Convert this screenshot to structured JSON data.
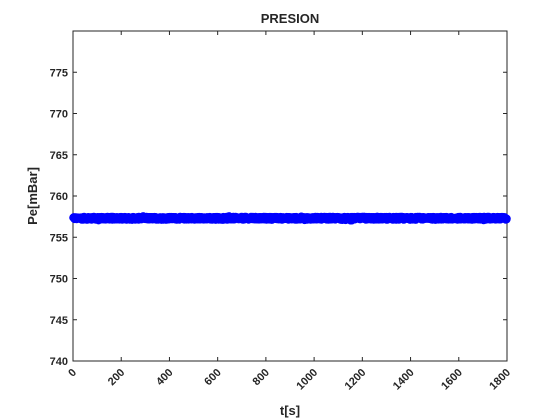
{
  "chart_data": {
    "type": "scatter",
    "title": "PRESION",
    "xlabel": "t[s]",
    "ylabel": "Pe[mBar]",
    "xlim": [
      0,
      1800
    ],
    "ylim": [
      740,
      780
    ],
    "xticks": [
      0,
      200,
      400,
      600,
      800,
      1000,
      1200,
      1400,
      1600,
      1800
    ],
    "yticks": [
      740,
      745,
      750,
      755,
      760,
      765,
      770,
      775
    ],
    "grid": false,
    "series": [
      {
        "color": "#0000ff",
        "marker": "circle",
        "x_range": [
          0,
          1800
        ],
        "values_range": [
          757.0,
          757.6
        ],
        "value_mean": 757.3
      }
    ]
  }
}
